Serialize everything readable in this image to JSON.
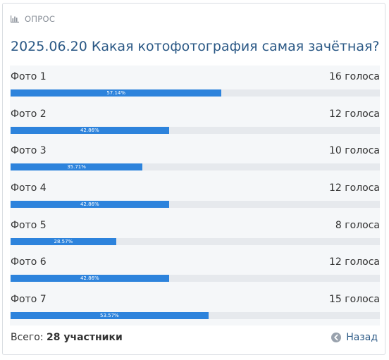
{
  "poll": {
    "label": "ОПРОС",
    "title": "2025.06.20 Какая котофотография самая зачётная?",
    "options": [
      {
        "name": "Фото 1",
        "votes": "16 голоса",
        "percent": "57.14%",
        "fraction": 0.5714
      },
      {
        "name": "Фото 2",
        "votes": "12 голоса",
        "percent": "42.86%",
        "fraction": 0.4286
      },
      {
        "name": "Фото 3",
        "votes": "10 голоса",
        "percent": "35.71%",
        "fraction": 0.3571
      },
      {
        "name": "Фото 4",
        "votes": "12 голоса",
        "percent": "42.86%",
        "fraction": 0.4286
      },
      {
        "name": "Фото 5",
        "votes": "8 голоса",
        "percent": "28.57%",
        "fraction": 0.2857
      },
      {
        "name": "Фото 6",
        "votes": "12 голоса",
        "percent": "42.86%",
        "fraction": 0.4286
      },
      {
        "name": "Фото 7",
        "votes": "15 голоса",
        "percent": "53.57%",
        "fraction": 0.5357
      }
    ],
    "footer": {
      "total_label": "Всего: ",
      "total_count": "28 участники",
      "back_label": "Назад"
    }
  },
  "colors": {
    "accent": "#2a5885",
    "bar": "#2d83dc",
    "track": "#e6e9ed"
  },
  "icons": {
    "header": "bar-chart-icon",
    "back": "arrow-left-circle-icon"
  }
}
